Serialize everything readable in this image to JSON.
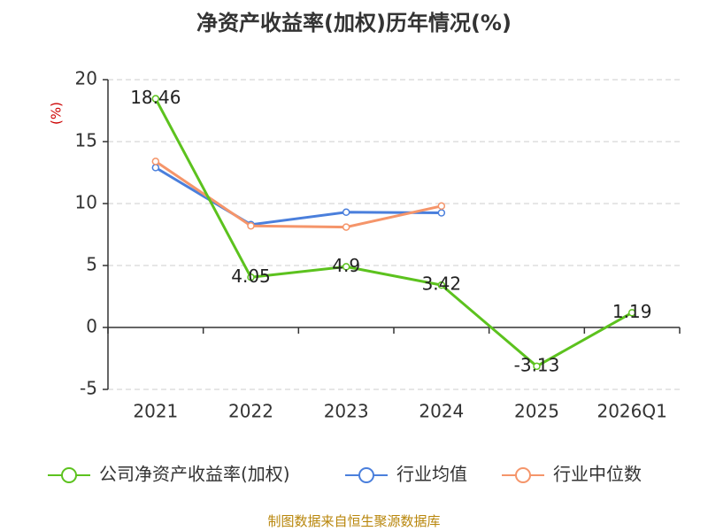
{
  "title": "净资产收益率(加权)历年情况(%)",
  "source": "制图数据来自恒生聚源数据库",
  "unit_label": "(%)",
  "colors": {
    "unit_label": "#cc0000",
    "grid": "#cccccc",
    "axis": "#333333"
  },
  "chart_data": {
    "type": "line",
    "title": "净资产收益率(加权)历年情况(%)",
    "ylabel": "(%)",
    "categories": [
      "2021",
      "2022",
      "2023",
      "2024",
      "2025",
      "2026Q1"
    ],
    "ylim": [
      -5,
      20
    ],
    "yticks": [
      -5,
      0,
      5,
      10,
      15,
      20
    ],
    "grid": true,
    "legend_position": "bottom",
    "series": [
      {
        "name": "公司净资产收益率(加权)",
        "color": "#5cc21e",
        "values": [
          18.46,
          4.05,
          4.9,
          3.42,
          -3.13,
          1.19
        ],
        "labels": [
          "18.46",
          "4.05",
          "4.9",
          "3.42",
          "-3.13",
          "1.19"
        ]
      },
      {
        "name": "行业均值",
        "color": "#4a7fdc",
        "values": [
          12.9,
          8.3,
          9.3,
          9.25,
          null,
          null
        ]
      },
      {
        "name": "行业中位数",
        "color": "#f5956a",
        "values": [
          13.4,
          8.2,
          8.1,
          9.8,
          null,
          null
        ]
      }
    ]
  }
}
